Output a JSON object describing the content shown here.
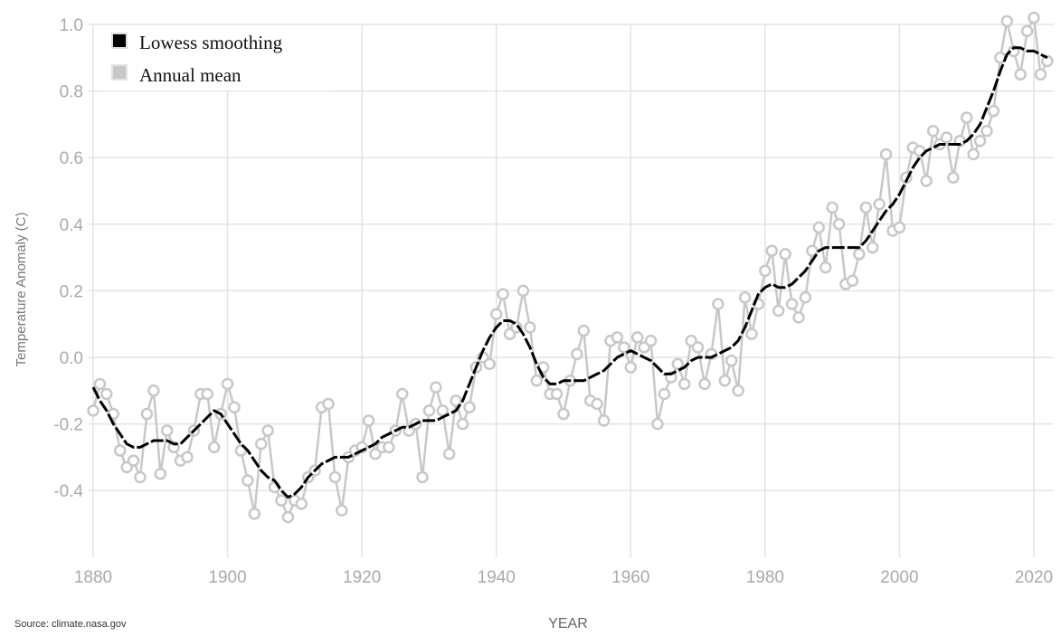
{
  "chart_data": {
    "type": "line",
    "title": "",
    "xlabel": "YEAR",
    "ylabel": "Temperature Anomaly (C)",
    "source": "Source: climate.nasa.gov",
    "xlim": [
      1880,
      2022
    ],
    "ylim": [
      -0.6,
      1.0
    ],
    "x_ticks": [
      "1880",
      "1900",
      "1920",
      "1940",
      "1960",
      "1980",
      "2000",
      "2020"
    ],
    "y_ticks": [
      "-0.4",
      "-0.2",
      "0.0",
      "0.2",
      "0.4",
      "0.6",
      "0.8",
      "1.0"
    ],
    "grid": true,
    "legend_position": "top-left",
    "colors": {
      "lowess": "#000000",
      "annual": "#c8c8c8",
      "grid": "#e4e4e4"
    },
    "x_start": 1880,
    "series": [
      {
        "name": "Lowess smoothing",
        "values": [
          -0.09,
          -0.13,
          -0.16,
          -0.2,
          -0.23,
          -0.26,
          -0.27,
          -0.27,
          -0.26,
          -0.25,
          -0.25,
          -0.25,
          -0.26,
          -0.26,
          -0.24,
          -0.22,
          -0.2,
          -0.18,
          -0.16,
          -0.17,
          -0.2,
          -0.23,
          -0.26,
          -0.28,
          -0.31,
          -0.34,
          -0.36,
          -0.37,
          -0.4,
          -0.42,
          -0.41,
          -0.39,
          -0.36,
          -0.34,
          -0.32,
          -0.31,
          -0.3,
          -0.3,
          -0.3,
          -0.29,
          -0.28,
          -0.27,
          -0.26,
          -0.24,
          -0.23,
          -0.22,
          -0.21,
          -0.21,
          -0.2,
          -0.19,
          -0.19,
          -0.19,
          -0.18,
          -0.17,
          -0.16,
          -0.13,
          -0.08,
          -0.03,
          0.02,
          0.06,
          0.09,
          0.11,
          0.11,
          0.1,
          0.07,
          0.03,
          -0.02,
          -0.06,
          -0.08,
          -0.08,
          -0.07,
          -0.07,
          -0.07,
          -0.07,
          -0.06,
          -0.05,
          -0.04,
          -0.02,
          0.0,
          0.01,
          0.02,
          0.01,
          0.0,
          -0.01,
          -0.03,
          -0.05,
          -0.05,
          -0.04,
          -0.03,
          -0.01,
          0.0,
          0.0,
          0.0,
          0.01,
          0.02,
          0.03,
          0.05,
          0.09,
          0.14,
          0.19,
          0.21,
          0.22,
          0.21,
          0.21,
          0.22,
          0.24,
          0.26,
          0.29,
          0.32,
          0.33,
          0.33,
          0.33,
          0.33,
          0.33,
          0.33,
          0.35,
          0.38,
          0.41,
          0.44,
          0.46,
          0.49,
          0.53,
          0.57,
          0.6,
          0.62,
          0.63,
          0.64,
          0.64,
          0.64,
          0.64,
          0.65,
          0.67,
          0.7,
          0.75,
          0.8,
          0.86,
          0.91,
          0.93,
          0.93,
          0.92,
          0.92,
          0.91,
          0.9
        ]
      },
      {
        "name": "Annual mean",
        "values": [
          -0.16,
          -0.08,
          -0.11,
          -0.17,
          -0.28,
          -0.33,
          -0.31,
          -0.36,
          -0.17,
          -0.1,
          -0.35,
          -0.22,
          -0.27,
          -0.31,
          -0.3,
          -0.22,
          -0.11,
          -0.11,
          -0.27,
          -0.17,
          -0.08,
          -0.15,
          -0.28,
          -0.37,
          -0.47,
          -0.26,
          -0.22,
          -0.39,
          -0.43,
          -0.48,
          -0.43,
          -0.44,
          -0.36,
          -0.34,
          -0.15,
          -0.14,
          -0.36,
          -0.46,
          -0.3,
          -0.28,
          -0.27,
          -0.19,
          -0.29,
          -0.27,
          -0.27,
          -0.22,
          -0.11,
          -0.22,
          -0.2,
          -0.36,
          -0.16,
          -0.09,
          -0.16,
          -0.29,
          -0.13,
          -0.2,
          -0.15,
          -0.03,
          0.0,
          -0.02,
          0.13,
          0.19,
          0.07,
          0.09,
          0.2,
          0.09,
          -0.07,
          -0.03,
          -0.11,
          -0.11,
          -0.17,
          -0.07,
          0.01,
          0.08,
          -0.13,
          -0.14,
          -0.19,
          0.05,
          0.06,
          0.03,
          -0.03,
          0.06,
          0.03,
          0.05,
          -0.2,
          -0.11,
          -0.06,
          -0.02,
          -0.08,
          0.05,
          0.03,
          -0.08,
          0.01,
          0.16,
          -0.07,
          -0.01,
          -0.1,
          0.18,
          0.07,
          0.16,
          0.26,
          0.32,
          0.14,
          0.31,
          0.16,
          0.12,
          0.18,
          0.32,
          0.39,
          0.27,
          0.45,
          0.4,
          0.22,
          0.23,
          0.31,
          0.45,
          0.33,
          0.46,
          0.61,
          0.38,
          0.39,
          0.54,
          0.63,
          0.62,
          0.53,
          0.68,
          0.64,
          0.66,
          0.54,
          0.65,
          0.72,
          0.61,
          0.65,
          0.68,
          0.74,
          0.9,
          1.01,
          0.92,
          0.85,
          0.98,
          1.02,
          0.85,
          0.89
        ]
      }
    ]
  }
}
